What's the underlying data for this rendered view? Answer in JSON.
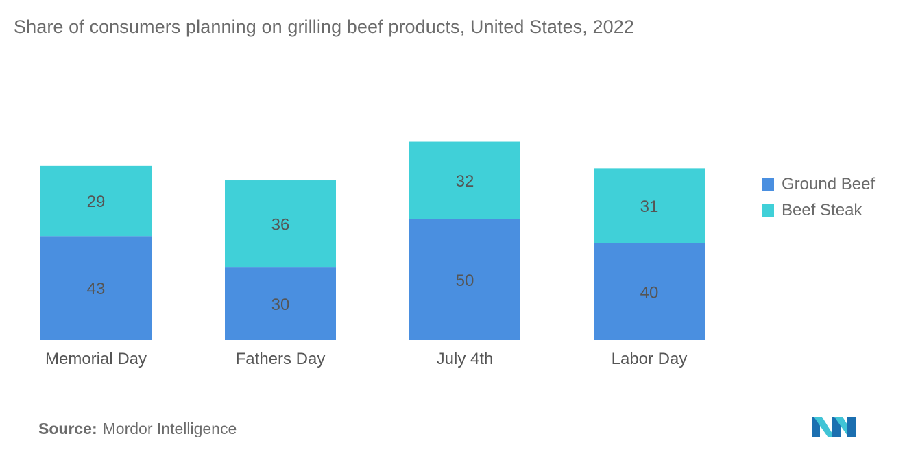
{
  "chart_data": {
    "type": "bar",
    "stacked": true,
    "title": "Share of consumers planning on grilling beef products, United States, 2022",
    "categories": [
      "Memorial Day",
      "Fathers Day",
      "July 4th",
      "Labor Day"
    ],
    "series": [
      {
        "name": "Ground Beef",
        "color": "#4a8fe0",
        "values": [
          43,
          30,
          50,
          40
        ]
      },
      {
        "name": "Beef Steak",
        "color": "#40d0d8",
        "values": [
          29,
          36,
          32,
          31
        ]
      }
    ],
    "xlabel": "",
    "ylabel": "",
    "ylim": [
      0,
      100
    ],
    "grid": false,
    "legend_position": "right"
  },
  "source": {
    "label": "Source:",
    "text": "Mordor Intelligence"
  },
  "logo": {
    "name": "mordor-intelligence-logo",
    "colors": [
      "#1b6fb0",
      "#40c4d6"
    ]
  }
}
